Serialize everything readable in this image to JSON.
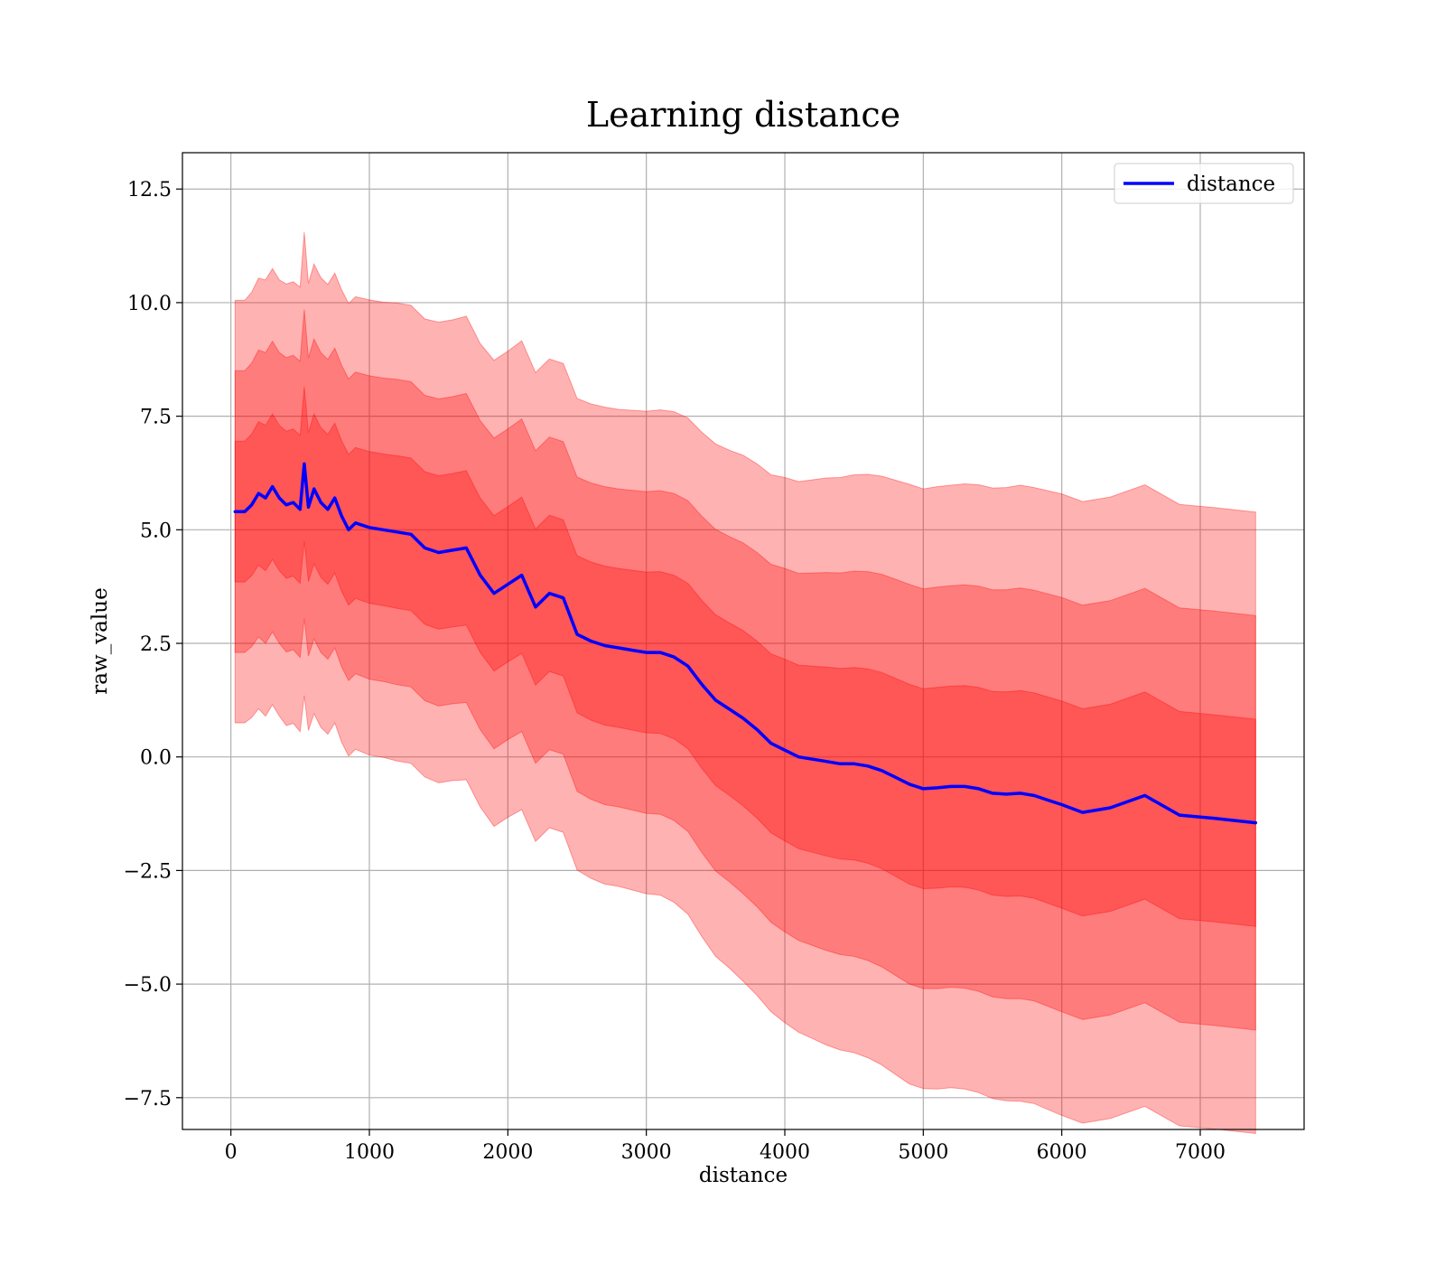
{
  "chart_data": {
    "type": "line",
    "title": "Learning distance",
    "xlabel": "distance",
    "ylabel": "raw_value",
    "xlim": [
      -350,
      7750
    ],
    "ylim": [
      -8.2,
      13.3
    ],
    "xticks": [
      0,
      1000,
      2000,
      3000,
      4000,
      5000,
      6000,
      7000
    ],
    "xtick_labels": [
      "0",
      "1000",
      "2000",
      "3000",
      "4000",
      "5000",
      "6000",
      "7000"
    ],
    "yticks": [
      -7.5,
      -5.0,
      -2.5,
      0.0,
      2.5,
      5.0,
      7.5,
      10.0,
      12.5
    ],
    "ytick_labels": [
      "−7.5",
      "−5.0",
      "−2.5",
      "0.0",
      "2.5",
      "5.0",
      "7.5",
      "10.0",
      "12.5"
    ],
    "grid": true,
    "legend": {
      "position": "top-right",
      "entries": [
        "distance"
      ]
    },
    "colors": {
      "line": "#0000ff",
      "band": "#ff0000",
      "band_opacity": 0.3,
      "frame": "#000000",
      "grid": "#b0b0b0"
    },
    "bands": [
      {
        "sigma": 1,
        "description": "mean ± 1 std"
      },
      {
        "sigma": 2,
        "description": "mean ± 2 std"
      },
      {
        "sigma": 3,
        "description": "mean ± 3 std"
      }
    ],
    "series": [
      {
        "name": "distance",
        "x": [
          30,
          100,
          150,
          200,
          250,
          300,
          350,
          400,
          450,
          500,
          530,
          560,
          600,
          650,
          700,
          750,
          800,
          850,
          900,
          1000,
          1100,
          1200,
          1300,
          1400,
          1500,
          1600,
          1700,
          1800,
          1900,
          2000,
          2100,
          2200,
          2300,
          2400,
          2500,
          2600,
          2700,
          2800,
          2900,
          3000,
          3100,
          3200,
          3300,
          3400,
          3500,
          3600,
          3700,
          3800,
          3900,
          4000,
          4100,
          4200,
          4300,
          4400,
          4500,
          4600,
          4700,
          4800,
          4900,
          5000,
          5100,
          5200,
          5300,
          5400,
          5500,
          5600,
          5700,
          5800,
          5900,
          6000,
          6150,
          6350,
          6600,
          6850,
          7100,
          7400
        ],
        "y": [
          5.4,
          5.4,
          5.55,
          5.8,
          5.7,
          5.95,
          5.7,
          5.55,
          5.6,
          5.45,
          6.45,
          5.5,
          5.9,
          5.6,
          5.45,
          5.7,
          5.3,
          5.0,
          5.15,
          5.05,
          5.0,
          4.95,
          4.9,
          4.6,
          4.5,
          4.55,
          4.6,
          4.0,
          3.6,
          3.8,
          4.0,
          3.3,
          3.6,
          3.5,
          2.7,
          2.55,
          2.45,
          2.4,
          2.35,
          2.3,
          2.3,
          2.2,
          2.0,
          1.6,
          1.25,
          1.05,
          0.85,
          0.6,
          0.3,
          0.15,
          0.0,
          -0.05,
          -0.1,
          -0.15,
          -0.15,
          -0.2,
          -0.3,
          -0.45,
          -0.6,
          -0.7,
          -0.68,
          -0.65,
          -0.65,
          -0.7,
          -0.8,
          -0.82,
          -0.8,
          -0.85,
          -0.95,
          -1.05,
          -1.22,
          -1.12,
          -0.85,
          -1.28,
          -1.35,
          -1.45
        ],
        "std": [
          1.55,
          1.55,
          1.56,
          1.58,
          1.6,
          1.6,
          1.6,
          1.62,
          1.62,
          1.63,
          1.7,
          1.64,
          1.65,
          1.65,
          1.65,
          1.65,
          1.66,
          1.66,
          1.66,
          1.67,
          1.67,
          1.68,
          1.68,
          1.68,
          1.69,
          1.69,
          1.7,
          1.7,
          1.71,
          1.71,
          1.72,
          1.72,
          1.72,
          1.72,
          1.73,
          1.74,
          1.75,
          1.75,
          1.76,
          1.77,
          1.78,
          1.8,
          1.82,
          1.85,
          1.88,
          1.9,
          1.93,
          1.95,
          1.97,
          2.0,
          2.02,
          2.05,
          2.08,
          2.1,
          2.12,
          2.14,
          2.16,
          2.18,
          2.2,
          2.2,
          2.21,
          2.21,
          2.22,
          2.23,
          2.24,
          2.25,
          2.26,
          2.26,
          2.27,
          2.28,
          2.28,
          2.28,
          2.28,
          2.28,
          2.28,
          2.28
        ]
      }
    ]
  }
}
